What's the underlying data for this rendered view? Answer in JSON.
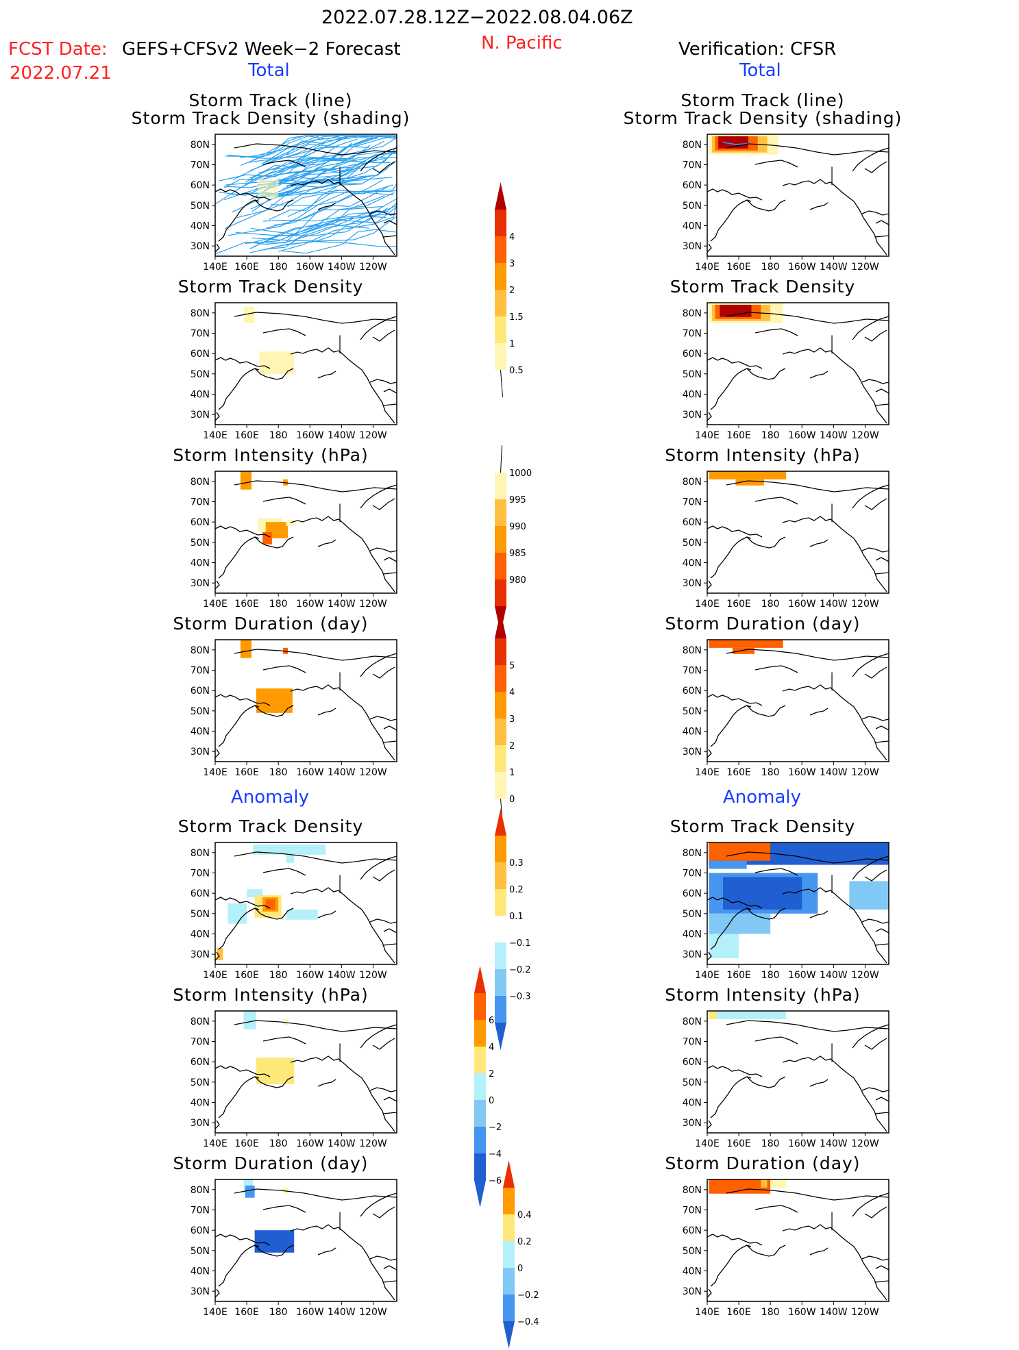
{
  "header": {
    "date_range": "2022.07.28.12Z−2022.08.04.06Z",
    "region": "N. Pacific",
    "fcst_label": "FCST Date:",
    "fcst_model": "GEFS+CFSv2 Week−2 Forecast",
    "fcst_date": "2022.07.21",
    "verification": "Verification: CFSR"
  },
  "sections": {
    "total": "Total",
    "anomaly": "Anomaly"
  },
  "map_axes": {
    "lat_labels": [
      "80N",
      "70N",
      "60N",
      "50N",
      "40N",
      "30N"
    ],
    "lon_labels": [
      "140E",
      "160E",
      "180",
      "160W",
      "140W",
      "120W"
    ]
  },
  "panels": {
    "storm_track_line_1": "Storm Track (line)",
    "storm_track_line_2": "Storm Track Density (shading)",
    "track_density": "Storm Track Density",
    "intensity": "Storm Intensity (hPa)",
    "duration": "Storm Duration (day)"
  },
  "colorbars": {
    "density": [
      "4",
      "3",
      "2",
      "1.5",
      "1",
      "0.5"
    ],
    "intensity": [
      "1000",
      "995",
      "990",
      "985",
      "980"
    ],
    "duration": [
      "5",
      "4",
      "3",
      "2",
      "1",
      "0"
    ],
    "anom_density": [
      "0.3",
      "0.2",
      "0.1",
      "−0.1",
      "−0.2",
      "−0.3"
    ],
    "anom_intensity": [
      "6",
      "4",
      "2",
      "0",
      "−2",
      "−4",
      "−6"
    ],
    "anom_duration": [
      "0.4",
      "0.2",
      "0",
      "−0.2",
      "−0.4"
    ]
  },
  "colors": {
    "warm": [
      "#fff6b4",
      "#ffe87a",
      "#ffc040",
      "#ff9a00",
      "#ff6000",
      "#e83000",
      "#b00000"
    ],
    "cool": [
      "#b4f0fa",
      "#82c8f5",
      "#4696f0",
      "#1f5fd2"
    ],
    "track_line": "#2aa0f0"
  }
}
